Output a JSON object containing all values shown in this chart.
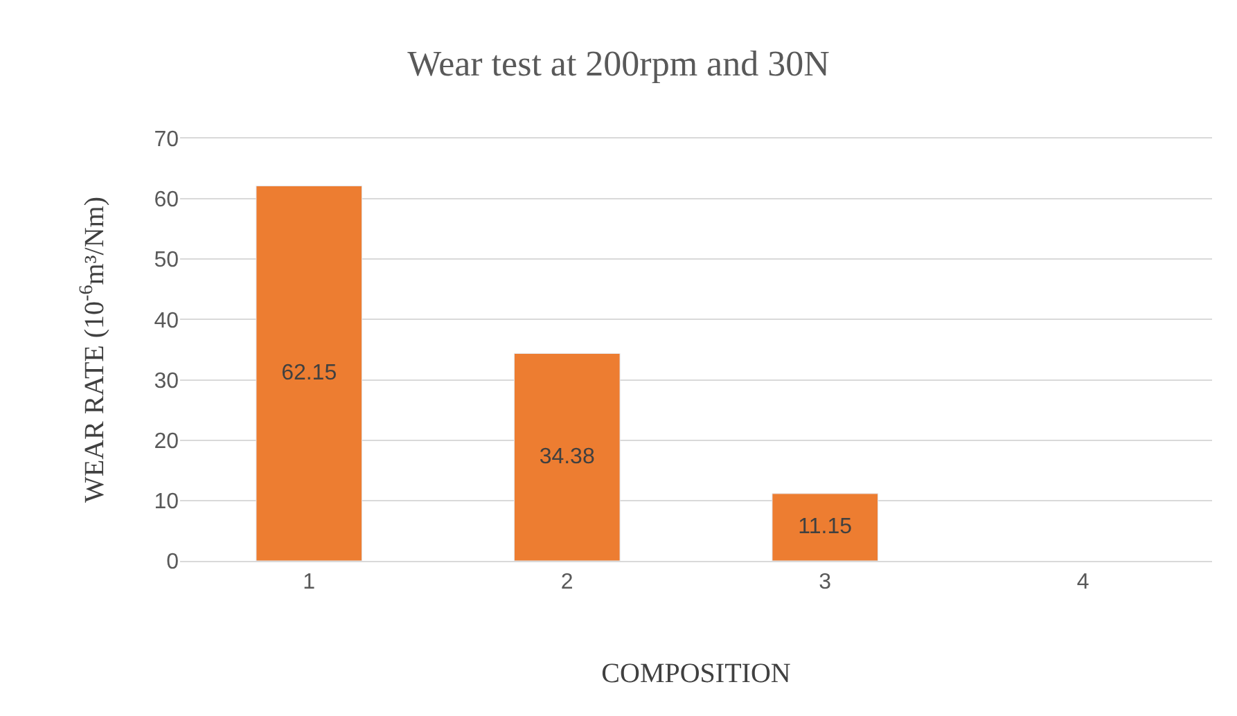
{
  "chart_data": {
    "type": "bar",
    "title": "Wear test at 200rpm and 30N",
    "xlabel": "COMPOSITION",
    "ylabel": "WEAR RATE (10$^{-6}$m³/Nm)",
    "categories": [
      "1",
      "2",
      "3",
      "4"
    ],
    "values": [
      62.15,
      34.38,
      11.15,
      null
    ],
    "color": "#ed7d31",
    "ylim": [
      0,
      70
    ],
    "yticks": [
      0,
      10,
      20,
      30,
      40,
      50,
      60,
      70
    ],
    "grid": "y",
    "data_labels": true
  }
}
